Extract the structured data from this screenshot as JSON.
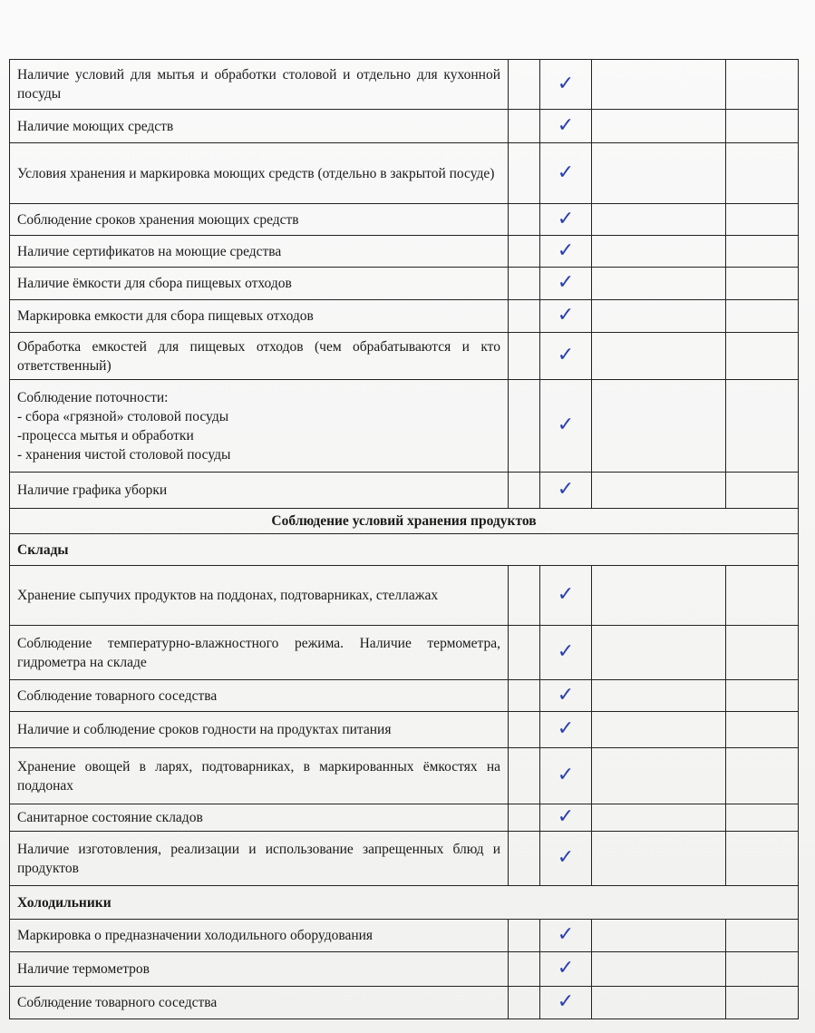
{
  "rows": [
    {
      "type": "item",
      "text": "Наличие условий для мытья и обработки столовой и отдельно для кухонной посуды",
      "checked": true,
      "h": 55
    },
    {
      "type": "item",
      "text": "Наличие моющих средств",
      "checked": true,
      "h": 37
    },
    {
      "type": "item",
      "text": "Условия хранения и маркировка моющих средств (отдельно в закрытой посуде)",
      "checked": true,
      "h": 67
    },
    {
      "type": "item",
      "text": "Соблюдение сроков хранения моющих средств",
      "checked": true,
      "h": 35
    },
    {
      "type": "item",
      "text": "Наличие сертификатов на моющие средства",
      "checked": true,
      "h": 35
    },
    {
      "type": "item",
      "text": "Наличие ёмкости для сбора пищевых отходов",
      "checked": true,
      "h": 36
    },
    {
      "type": "item",
      "text": "Маркировка емкости для сбора пищевых отходов",
      "checked": true,
      "h": 36
    },
    {
      "type": "item",
      "text": "Обработка емкостей для пищевых отходов (чем обрабатываются и кто ответственный)",
      "checked": true,
      "h": 52
    },
    {
      "type": "item",
      "text": "Соблюдение поточности:\n- сбора «грязной» столовой посуды\n-процесса мытья и обработки\n- хранения чистой столовой посуды",
      "checked": true,
      "h": 102
    },
    {
      "type": "item",
      "text": "Наличие графика уборки",
      "checked": true,
      "h": 40
    },
    {
      "type": "section",
      "text": "Соблюдение условий хранения продуктов",
      "h": 28
    },
    {
      "type": "subsection",
      "text": "Склады",
      "h": 35
    },
    {
      "type": "item",
      "text": "Хранение сыпучих продуктов на поддонах, подтоварниках, стеллажах",
      "checked": true,
      "h": 66
    },
    {
      "type": "item",
      "text": "Соблюдение температурно-влажностного режима. Наличие термометра, гидрометра на складе",
      "checked": true,
      "h": 60
    },
    {
      "type": "item",
      "text": "Соблюдение товарного соседства",
      "checked": true,
      "h": 35
    },
    {
      "type": "item",
      "text": "Наличие и соблюдение сроков годности на продуктах питания",
      "checked": true,
      "h": 40
    },
    {
      "type": "item",
      "text": "Хранение овощей в ларях, подтоварниках, в маркированных ёмкостях на поддонах",
      "checked": true,
      "h": 62
    },
    {
      "type": "item",
      "text": "Санитарное состояние складов",
      "checked": true,
      "h": 30
    },
    {
      "type": "item",
      "text": "Наличие изготовления, реализации и использование запрещенных блюд и продуктов",
      "checked": true,
      "h": 60
    },
    {
      "type": "subsection",
      "text": "Холодильники",
      "h": 37
    },
    {
      "type": "item",
      "text": "Маркировка о предназначении холодильного оборудования",
      "checked": true,
      "h": 36
    },
    {
      "type": "item",
      "text": "Наличие термометров",
      "checked": true,
      "h": 38
    },
    {
      "type": "item",
      "text": "Соблюдение товарного соседства",
      "checked": true,
      "h": 36
    }
  ],
  "check_mark": "✓",
  "check_color": "#2a3fb0"
}
